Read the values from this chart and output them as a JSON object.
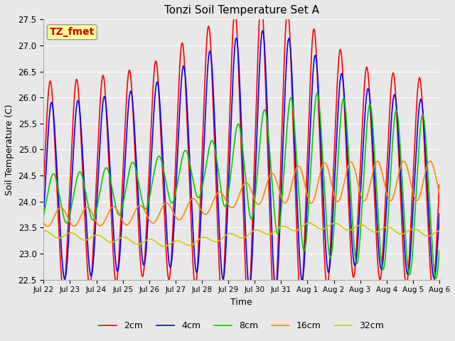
{
  "title": "Tonzi Soil Temperature Set A",
  "xlabel": "Time",
  "ylabel": "Soil Temperature (C)",
  "ylim": [
    22.5,
    27.5
  ],
  "yticks": [
    22.5,
    23.0,
    23.5,
    24.0,
    24.5,
    25.0,
    25.5,
    26.0,
    26.5,
    27.0,
    27.5
  ],
  "xtick_labels": [
    "Jul 22",
    "Jul 23",
    "Jul 24",
    "Jul 25",
    "Jul 26",
    "Jul 27",
    "Jul 28",
    "Jul 29",
    "Jul 30",
    "Jul 31",
    "Aug 1",
    "Aug 2",
    "Aug 3",
    "Aug 4",
    "Aug 5",
    "Aug 6"
  ],
  "legend_labels": [
    "2cm",
    "4cm",
    "8cm",
    "16cm",
    "32cm"
  ],
  "line_colors": [
    "#ff0000",
    "#0000ff",
    "#00cc00",
    "#ff8800",
    "#cccc00"
  ],
  "line_widths": [
    1.2,
    1.2,
    1.2,
    1.2,
    1.2
  ],
  "background_color": "#e8e8e8",
  "annotation_text": "TZ_fmet",
  "annotation_color": "#cc0000",
  "annotation_bg": "#ffff99",
  "annotation_border": "#999999",
  "figsize": [
    6.4,
    4.8
  ],
  "dpi": 100
}
